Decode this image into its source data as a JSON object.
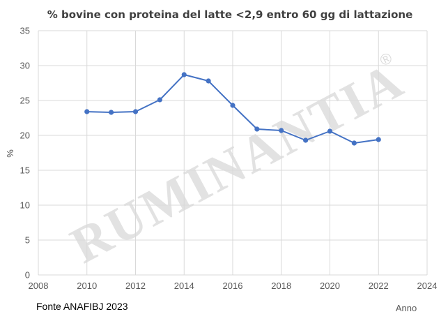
{
  "chart_data": {
    "type": "line",
    "title": "% bovine con proteina del latte <2,9 entro 60 gg di lattazione",
    "xlabel": "Anno",
    "ylabel": "%",
    "xlim": [
      2008,
      2024
    ],
    "ylim": [
      0,
      35
    ],
    "xticks": [
      2008,
      2010,
      2012,
      2014,
      2016,
      2018,
      2020,
      2022,
      2024
    ],
    "yticks": [
      0,
      5,
      10,
      15,
      20,
      25,
      30,
      35
    ],
    "grid": true,
    "legend": "none",
    "color": "#4472C4",
    "series": [
      {
        "x": [
          2010,
          2011,
          2012,
          2013,
          2014,
          2015,
          2016,
          2017,
          2018,
          2019,
          2020,
          2021,
          2022
        ],
        "values": [
          23.4,
          23.3,
          23.4,
          25.1,
          28.7,
          27.8,
          24.3,
          20.9,
          20.7,
          19.3,
          20.6,
          18.9,
          19.4
        ]
      }
    ]
  },
  "source": "Fonte ANAFIBJ 2023",
  "watermark": {
    "text": "RUMINANTIA",
    "symbol": "®"
  }
}
